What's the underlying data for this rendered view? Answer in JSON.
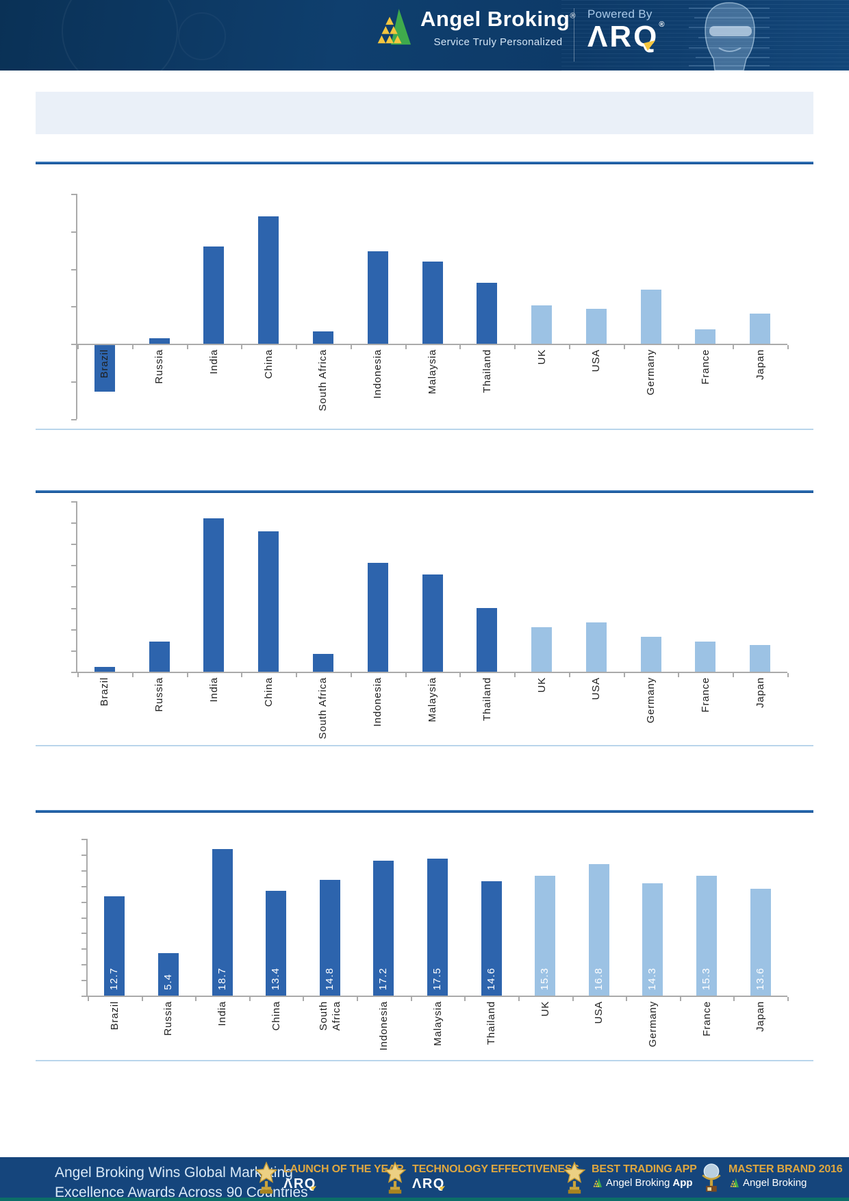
{
  "header": {
    "brand": "Angel Broking",
    "registered": "®",
    "tagline": "Service Truly Personalized",
    "powered_by": "Powered By",
    "arq_wordmark": "ΛRQ",
    "arq_registered": "®"
  },
  "title_banner": {
    "text": ""
  },
  "chart_data": [
    {
      "type": "bar",
      "title": "",
      "categories": [
        "Brazil",
        "Russia",
        "India",
        "China",
        "South Africa",
        "Indonesia",
        "Malaysia",
        "Thailand",
        "UK",
        "USA",
        "Germany",
        "France",
        "Japan"
      ],
      "values": [
        -1.25,
        0.15,
        2.6,
        3.4,
        0.33,
        2.47,
        2.2,
        1.62,
        1.02,
        0.93,
        1.44,
        0.39,
        0.8
      ],
      "ylim": [
        -2,
        4
      ],
      "gridline_step": 1,
      "y_axis_labels_visible": false,
      "data_labels": false,
      "dark_bar_count": 8,
      "legend": "none",
      "note": "y-axis shows tick marks only, no numeric labels; values estimated in gridline units"
    },
    {
      "type": "bar",
      "title": "",
      "categories": [
        "Brazil",
        "Russia",
        "India",
        "China",
        "South Africa",
        "Indonesia",
        "Malaysia",
        "Thailand",
        "UK",
        "USA",
        "Germany",
        "France",
        "Japan"
      ],
      "values": [
        0.22,
        1.4,
        7.2,
        6.6,
        0.85,
        5.1,
        4.55,
        3.0,
        2.1,
        2.3,
        1.65,
        1.4,
        1.25
      ],
      "ylim": [
        0,
        8
      ],
      "gridline_step": 1,
      "y_axis_labels_visible": false,
      "data_labels": false,
      "dark_bar_count": 8,
      "legend": "none",
      "note": "y-axis shows tick marks only, no numeric labels; values estimated in gridline units"
    },
    {
      "type": "bar",
      "title": "",
      "categories": [
        "Brazil",
        "Russia",
        "India",
        "China",
        "South\nAfrica",
        "Indonesia",
        "Malaysia",
        "Thailand",
        "UK",
        "USA",
        "Germany",
        "France",
        "Japan"
      ],
      "values": [
        12.7,
        5.4,
        18.7,
        13.4,
        14.8,
        17.2,
        17.5,
        14.6,
        15.3,
        16.8,
        14.3,
        15.3,
        13.6
      ],
      "ylim": [
        0,
        20
      ],
      "gridline_step": 2,
      "y_axis_labels_visible": false,
      "data_labels": true,
      "dark_bar_count": 8,
      "legend": "none",
      "note": "white rotated value labels inside bars"
    }
  ],
  "footer": {
    "headline": "Angel Broking Wins Global Marketing\nExcellence Awards Across 90 Countries",
    "awards": [
      {
        "icon": "star-trophy",
        "title": "LAUNCH OF THE YEAR",
        "subtitle": "ΛRQ",
        "subtitle_bold": "",
        "subtitle_type": "arq-logo"
      },
      {
        "icon": "star-trophy",
        "title": "TECHNOLOGY EFFECTIVENESS",
        "subtitle": "ΛRQ",
        "subtitle_bold": "",
        "subtitle_type": "arq-logo"
      },
      {
        "icon": "star-trophy",
        "title": "BEST TRADING APP",
        "subtitle": "Angel Broking",
        "subtitle_bold": "App",
        "subtitle_type": "angel-logo"
      },
      {
        "icon": "globe-trophy",
        "title": "MASTER BRAND 2016",
        "subtitle": "Angel Broking",
        "subtitle_bold": "",
        "subtitle_type": "angel-logo"
      }
    ]
  },
  "colors": {
    "bar_dark": "#2d64ad",
    "bar_light": "#9cc2e4",
    "axis": "#aaaaaa",
    "separator_dark": "#1d5fa6",
    "separator_light": "#b9d5eb",
    "panel": "#eaf0f8",
    "header_bg": "#0d3a68",
    "footer_bg": "#15457c",
    "gold": "#dfa73f",
    "logo_yellow": "#f5c63f",
    "logo_green": "#3faa4c"
  }
}
